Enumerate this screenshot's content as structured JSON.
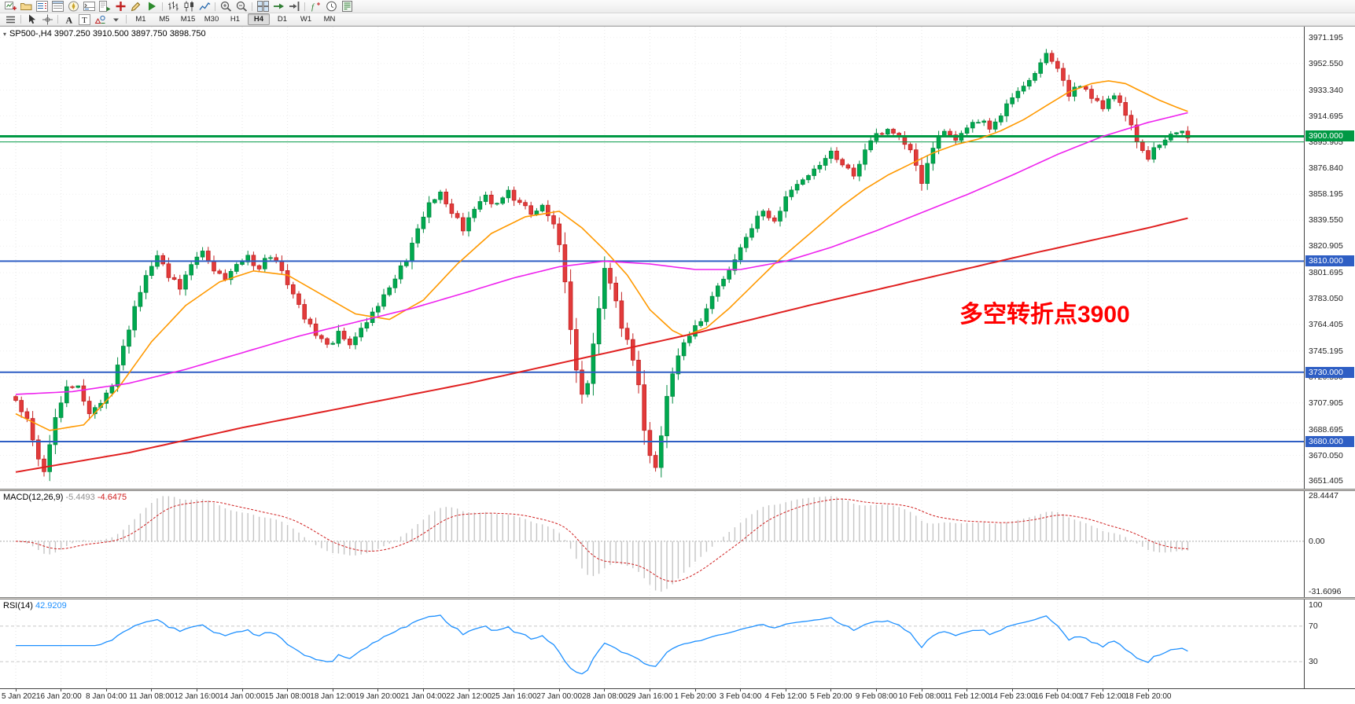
{
  "toolbar": {
    "row1": [
      {
        "name": "new-chart-button",
        "icon": "chart-new-icon"
      },
      {
        "name": "profiles-button",
        "icon": "folder-icon"
      },
      {
        "name": "market-watch-button",
        "icon": "market-watch-icon"
      },
      {
        "name": "data-window-button",
        "icon": "data-window-icon"
      },
      {
        "name": "navigator-button",
        "icon": "navigator-icon"
      },
      {
        "name": "terminal-button",
        "icon": "terminal-icon"
      },
      {
        "name": "strategy-tester-button",
        "icon": "strategy-tester-icon"
      },
      {
        "name": "new-order-button",
        "icon": "new-order-icon"
      },
      {
        "name": "metaeditor-button",
        "icon": "metaeditor-icon"
      },
      {
        "name": "autotrading-button",
        "icon": "autotrading-icon"
      },
      {
        "separator": true
      },
      {
        "name": "bar-chart-button",
        "icon": "bar-chart-icon"
      },
      {
        "name": "candlestick-chart-button",
        "icon": "candlestick-icon"
      },
      {
        "name": "line-chart-button",
        "icon": "line-chart-icon"
      },
      {
        "separator": true
      },
      {
        "name": "zoom-in-button",
        "icon": "zoom-in-icon"
      },
      {
        "name": "zoom-out-button",
        "icon": "zoom-out-icon"
      },
      {
        "separator": true
      },
      {
        "name": "tile-windows-button",
        "icon": "tile-windows-icon"
      },
      {
        "name": "auto-scroll-button",
        "icon": "auto-scroll-icon"
      },
      {
        "name": "chart-shift-button",
        "icon": "chart-shift-icon"
      },
      {
        "separator": true
      },
      {
        "name": "indicators-button",
        "icon": "indicators-icon"
      },
      {
        "name": "periods-button",
        "icon": "periods-icon"
      },
      {
        "name": "templates-button",
        "icon": "templates-icon"
      }
    ],
    "row2_left": [
      {
        "name": "chart-menu-button",
        "icon": "menu-icon"
      },
      {
        "separator": true
      },
      {
        "name": "cursor-tool-button",
        "icon": "cursor-icon"
      },
      {
        "name": "crosshair-tool-button",
        "icon": "crosshair-icon"
      },
      {
        "separator": true
      },
      {
        "name": "text-tool-button",
        "icon": "text-a-icon"
      },
      {
        "name": "text-label-tool-button",
        "icon": "text-t-icon"
      },
      {
        "name": "shapes-tool-button",
        "icon": "shapes-icon"
      },
      {
        "name": "shapes-dropdown-button",
        "icon": "dropdown-arrow-icon"
      },
      {
        "separator": true
      }
    ],
    "timeframes": [
      "M1",
      "M5",
      "M15",
      "M30",
      "H1",
      "H4",
      "D1",
      "W1",
      "MN"
    ],
    "active_timeframe": "H4"
  },
  "chart": {
    "symbol_header": "SP500-,H4  3907.250 3910.500 3897.750 3898.750",
    "annotation": {
      "text": "多空转折点3900",
      "color": "#FF0000"
    },
    "levels": [
      {
        "price": 3900.0,
        "label": "3900.000",
        "color": "#009944",
        "thickness": 3,
        "tagged": true
      },
      {
        "price": 3896.0,
        "label": "",
        "color": "#009944",
        "thickness": 1,
        "tagged": false
      },
      {
        "price": 3810.0,
        "label": "3810.000",
        "color": "#2E5EC4",
        "thickness": 2,
        "tagged": true
      },
      {
        "price": 3730.0,
        "label": "3730.000",
        "color": "#2E5EC4",
        "thickness": 2,
        "tagged": true
      },
      {
        "price": 3680.0,
        "label": "3680.000",
        "color": "#2E5EC4",
        "thickness": 2,
        "tagged": true
      }
    ],
    "price_axis": {
      "labels": [
        "3971.195",
        "3952.550",
        "3933.340",
        "3914.695",
        "3895.905",
        "3876.840",
        "3858.195",
        "3839.550",
        "3820.905",
        "3801.695",
        "3783.050",
        "3764.405",
        "3745.195",
        "3726.550",
        "3707.905",
        "3688.695",
        "3670.050",
        "3651.405"
      ]
    },
    "time_axis": {
      "labels": [
        "5 Jan 2021",
        "6 Jan 20:00",
        "8 Jan 04:00",
        "11 Jan 08:00",
        "12 Jan 16:00",
        "14 Jan 00:00",
        "15 Jan 08:00",
        "18 Jan 12:00",
        "19 Jan 20:00",
        "21 Jan 04:00",
        "22 Jan 12:00",
        "25 Jan 16:00",
        "27 Jan 00:00",
        "28 Jan 08:00",
        "29 Jan 16:00",
        "1 Feb 20:00",
        "3 Feb 04:00",
        "4 Feb 12:00",
        "5 Feb 20:00",
        "9 Feb 08:00",
        "10 Feb 08:00",
        "11 Feb 12:00",
        "14 Feb 23:00",
        "16 Feb 04:00",
        "17 Feb 12:00",
        "18 Feb 20:00"
      ]
    }
  },
  "macd": {
    "title": "MACD(12,26,9)",
    "value_main": "-5.4493",
    "value_signal": "-4.6475",
    "scale_top": "28.4447",
    "scale_zero": "0.00",
    "scale_bottom": "-31.6096",
    "histogram_color": "#C4C4C4",
    "signal_color": "#D02020"
  },
  "rsi": {
    "title": "RSI(14)",
    "value": "42.9209",
    "scale": [
      "100",
      "70",
      "30"
    ],
    "levels": [
      70,
      30
    ],
    "line_color": "#1E90FF"
  },
  "chart_data": {
    "type": "candlestick",
    "symbol": "SP500-",
    "timeframe": "H4",
    "title": "SP500- H4 candlestick chart, 5 Jan 2021 - 18 Feb 2021",
    "bars": 208,
    "bars_per_label": 8,
    "current_ohlc": {
      "open": 3907.25,
      "high": 3910.5,
      "low": 3897.75,
      "close": 3898.75
    },
    "price_range": [
      3646,
      3979
    ],
    "bull_color": "#00A94F",
    "bull_border": "#028B41",
    "bear_color": "#E23B3B",
    "bear_border": "#C32222",
    "close_path": [
      [
        0,
        3712
      ],
      [
        2,
        3695
      ],
      [
        4,
        3668
      ],
      [
        5,
        3660
      ],
      [
        7,
        3695
      ],
      [
        9,
        3718
      ],
      [
        11,
        3722
      ],
      [
        13,
        3700
      ],
      [
        15,
        3710
      ],
      [
        17,
        3722
      ],
      [
        19,
        3748
      ],
      [
        21,
        3775
      ],
      [
        23,
        3798
      ],
      [
        25,
        3812
      ],
      [
        27,
        3800
      ],
      [
        29,
        3792
      ],
      [
        31,
        3808
      ],
      [
        33,
        3815
      ],
      [
        35,
        3805
      ],
      [
        37,
        3795
      ],
      [
        39,
        3806
      ],
      [
        41,
        3812
      ],
      [
        43,
        3806
      ],
      [
        45,
        3814
      ],
      [
        47,
        3802
      ],
      [
        49,
        3785
      ],
      [
        51,
        3770
      ],
      [
        53,
        3756
      ],
      [
        55,
        3748
      ],
      [
        57,
        3758
      ],
      [
        59,
        3752
      ],
      [
        61,
        3762
      ],
      [
        63,
        3772
      ],
      [
        65,
        3784
      ],
      [
        67,
        3798
      ],
      [
        69,
        3812
      ],
      [
        71,
        3835
      ],
      [
        73,
        3852
      ],
      [
        75,
        3858
      ],
      [
        77,
        3845
      ],
      [
        79,
        3834
      ],
      [
        81,
        3846
      ],
      [
        83,
        3856
      ],
      [
        85,
        3850
      ],
      [
        87,
        3860
      ],
      [
        89,
        3852
      ],
      [
        91,
        3844
      ],
      [
        93,
        3848
      ],
      [
        95,
        3836
      ],
      [
        96,
        3820
      ],
      [
        97,
        3795
      ],
      [
        98,
        3760
      ],
      [
        99,
        3730
      ],
      [
        100,
        3712
      ],
      [
        101,
        3722
      ],
      [
        102,
        3748
      ],
      [
        103,
        3778
      ],
      [
        104,
        3806
      ],
      [
        105,
        3796
      ],
      [
        106,
        3780
      ],
      [
        107,
        3762
      ],
      [
        108,
        3752
      ],
      [
        109,
        3740
      ],
      [
        110,
        3720
      ],
      [
        111,
        3690
      ],
      [
        112,
        3668
      ],
      [
        113,
        3660
      ],
      [
        114,
        3685
      ],
      [
        115,
        3712
      ],
      [
        116,
        3730
      ],
      [
        117,
        3742
      ],
      [
        118,
        3752
      ],
      [
        119,
        3758
      ],
      [
        120,
        3762
      ],
      [
        122,
        3775
      ],
      [
        124,
        3790
      ],
      [
        126,
        3805
      ],
      [
        128,
        3822
      ],
      [
        130,
        3836
      ],
      [
        132,
        3845
      ],
      [
        134,
        3838
      ],
      [
        136,
        3856
      ],
      [
        138,
        3865
      ],
      [
        140,
        3872
      ],
      [
        142,
        3880
      ],
      [
        144,
        3888
      ],
      [
        146,
        3880
      ],
      [
        148,
        3872
      ],
      [
        150,
        3890
      ],
      [
        152,
        3900
      ],
      [
        154,
        3906
      ],
      [
        156,
        3898
      ],
      [
        158,
        3890
      ],
      [
        160,
        3868
      ],
      [
        162,
        3892
      ],
      [
        164,
        3904
      ],
      [
        166,
        3896
      ],
      [
        168,
        3906
      ],
      [
        170,
        3912
      ],
      [
        172,
        3906
      ],
      [
        174,
        3916
      ],
      [
        176,
        3928
      ],
      [
        178,
        3936
      ],
      [
        180,
        3946
      ],
      [
        182,
        3958
      ],
      [
        184,
        3950
      ],
      [
        185,
        3938
      ],
      [
        186,
        3930
      ],
      [
        188,
        3938
      ],
      [
        190,
        3928
      ],
      [
        192,
        3920
      ],
      [
        194,
        3930
      ],
      [
        196,
        3916
      ],
      [
        198,
        3898
      ],
      [
        200,
        3884
      ],
      [
        202,
        3896
      ],
      [
        204,
        3902
      ],
      [
        206,
        3906
      ],
      [
        207,
        3899
      ]
    ],
    "moving_averages": [
      {
        "name": "ma-fast-orange",
        "color": "#FF9900",
        "points": [
          [
            0,
            3700
          ],
          [
            6,
            3688
          ],
          [
            12,
            3692
          ],
          [
            18,
            3718
          ],
          [
            24,
            3752
          ],
          [
            30,
            3778
          ],
          [
            36,
            3795
          ],
          [
            42,
            3803
          ],
          [
            48,
            3800
          ],
          [
            54,
            3786
          ],
          [
            60,
            3772
          ],
          [
            66,
            3768
          ],
          [
            72,
            3782
          ],
          [
            78,
            3808
          ],
          [
            84,
            3830
          ],
          [
            90,
            3842
          ],
          [
            96,
            3846
          ],
          [
            100,
            3834
          ],
          [
            104,
            3818
          ],
          [
            108,
            3800
          ],
          [
            112,
            3775
          ],
          [
            116,
            3760
          ],
          [
            118,
            3756
          ],
          [
            122,
            3762
          ],
          [
            126,
            3776
          ],
          [
            130,
            3792
          ],
          [
            134,
            3808
          ],
          [
            138,
            3822
          ],
          [
            142,
            3836
          ],
          [
            146,
            3850
          ],
          [
            150,
            3862
          ],
          [
            154,
            3872
          ],
          [
            158,
            3880
          ],
          [
            162,
            3888
          ],
          [
            166,
            3894
          ],
          [
            170,
            3898
          ],
          [
            174,
            3904
          ],
          [
            178,
            3912
          ],
          [
            182,
            3922
          ],
          [
            186,
            3932
          ],
          [
            190,
            3938
          ],
          [
            193,
            3940
          ],
          [
            196,
            3938
          ],
          [
            199,
            3932
          ],
          [
            202,
            3926
          ],
          [
            205,
            3921
          ],
          [
            207,
            3918
          ]
        ]
      },
      {
        "name": "ma-mid-magenta",
        "color": "#EE22EE",
        "points": [
          [
            0,
            3714
          ],
          [
            10,
            3716
          ],
          [
            20,
            3722
          ],
          [
            30,
            3732
          ],
          [
            40,
            3744
          ],
          [
            50,
            3756
          ],
          [
            60,
            3766
          ],
          [
            70,
            3776
          ],
          [
            80,
            3788
          ],
          [
            88,
            3798
          ],
          [
            96,
            3806
          ],
          [
            104,
            3810
          ],
          [
            112,
            3808
          ],
          [
            120,
            3804
          ],
          [
            128,
            3804
          ],
          [
            136,
            3810
          ],
          [
            144,
            3820
          ],
          [
            152,
            3832
          ],
          [
            160,
            3845
          ],
          [
            168,
            3858
          ],
          [
            176,
            3872
          ],
          [
            184,
            3887
          ],
          [
            192,
            3900
          ],
          [
            200,
            3910
          ],
          [
            207,
            3917
          ]
        ]
      },
      {
        "name": "ma-slow-red",
        "color": "#E02020",
        "points": [
          [
            0,
            3658
          ],
          [
            20,
            3672
          ],
          [
            40,
            3690
          ],
          [
            60,
            3706
          ],
          [
            80,
            3722
          ],
          [
            100,
            3740
          ],
          [
            120,
            3758
          ],
          [
            140,
            3778
          ],
          [
            160,
            3797
          ],
          [
            180,
            3816
          ],
          [
            200,
            3834
          ],
          [
            207,
            3841
          ]
        ]
      }
    ]
  }
}
